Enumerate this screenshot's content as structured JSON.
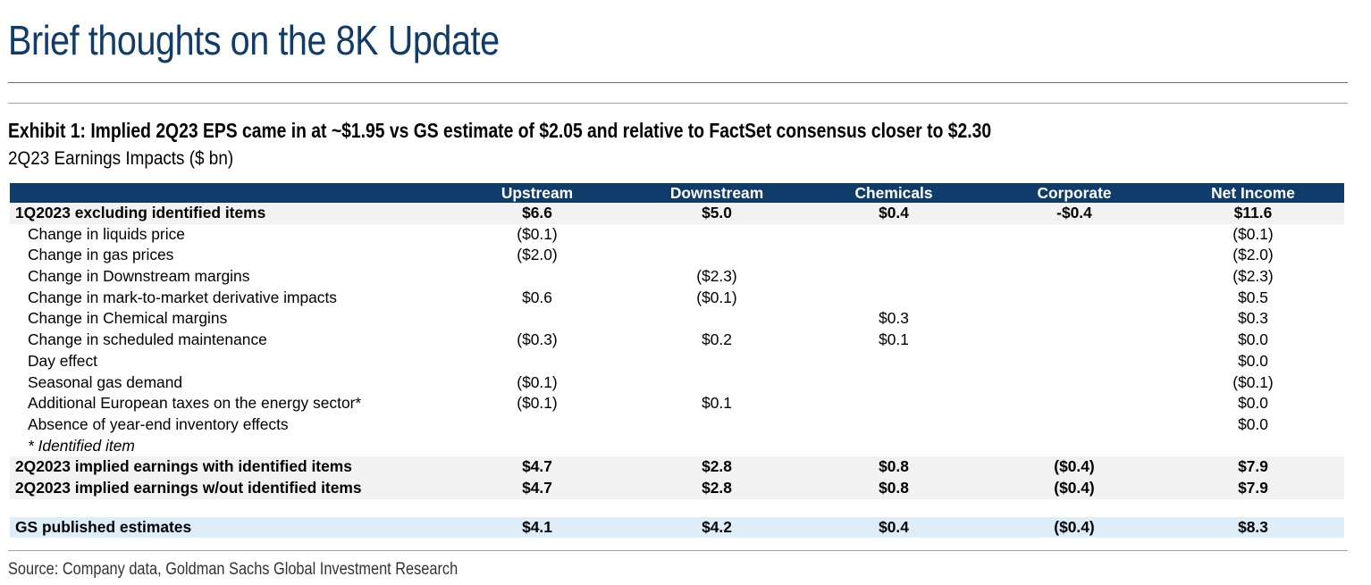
{
  "page_title": "Brief thoughts on the 8K Update",
  "exhibit_title": "Exhibit 1: Implied 2Q23 EPS came in at ~$1.95 vs GS estimate of $2.05 and relative to FactSet consensus closer to $2.30",
  "exhibit_subtitle": "2Q23 Earnings Impacts ($ bn)",
  "source": "Source: Company data, Goldman Sachs Global Investment Research",
  "colors": {
    "header_bg": "#0f3c6b",
    "gs_row_bg": "#ddeefa",
    "shade_bg": "#f2f2f2"
  },
  "table": {
    "columns": [
      "Upstream",
      "Downstream",
      "Chemicals",
      "Corporate",
      "Net Income"
    ],
    "rows": [
      {
        "label": "1Q2023 excluding identified items",
        "values": [
          "$6.6",
          "$5.0",
          "$0.4",
          "-$0.4",
          "$11.6"
        ]
      },
      {
        "label": "Change in liquids price",
        "values": [
          "($0.1)",
          "",
          "",
          "",
          "($0.1)"
        ]
      },
      {
        "label": "Change in gas prices",
        "values": [
          "($2.0)",
          "",
          "",
          "",
          "($2.0)"
        ]
      },
      {
        "label": "Change in Downstream margins",
        "values": [
          "",
          "($2.3)",
          "",
          "",
          "($2.3)"
        ]
      },
      {
        "label": "Change in mark-to-market derivative impacts",
        "values": [
          "$0.6",
          "($0.1)",
          "",
          "",
          "$0.5"
        ]
      },
      {
        "label": "Change in Chemical margins",
        "values": [
          "",
          "",
          "$0.3",
          "",
          "$0.3"
        ]
      },
      {
        "label": "Change in scheduled maintenance",
        "values": [
          "($0.3)",
          "$0.2",
          "$0.1",
          "",
          "$0.0"
        ]
      },
      {
        "label": "Day effect",
        "values": [
          "",
          "",
          "",
          "",
          "$0.0"
        ]
      },
      {
        "label": "Seasonal gas demand",
        "values": [
          "($0.1)",
          "",
          "",
          "",
          "($0.1)"
        ]
      },
      {
        "label": "Additional European taxes on the energy sector*",
        "values": [
          "($0.1)",
          "$0.1",
          "",
          "",
          "$0.0"
        ]
      },
      {
        "label": "Absence of year-end inventory effects",
        "values": [
          "",
          "",
          "",
          "",
          "$0.0"
        ]
      },
      {
        "label": "* Identified item",
        "values": [
          "",
          "",
          "",
          "",
          ""
        ]
      },
      {
        "label": "2Q2023 implied earnings with identified items",
        "values": [
          "$4.7",
          "$2.8",
          "$0.8",
          "($0.4)",
          "$7.9"
        ]
      },
      {
        "label": "2Q2023 implied earnings w/out identified items",
        "values": [
          "$4.7",
          "$2.8",
          "$0.8",
          "($0.4)",
          "$7.9"
        ]
      },
      {
        "label": "GS published estimates",
        "values": [
          "$4.1",
          "$4.2",
          "$0.4",
          "($0.4)",
          "$8.3"
        ]
      }
    ]
  }
}
